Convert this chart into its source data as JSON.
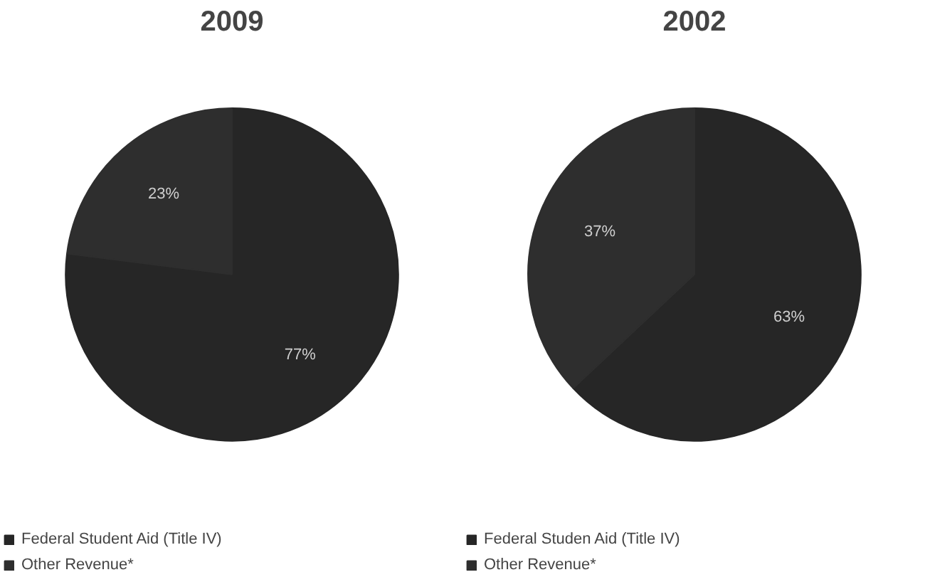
{
  "chart_data": [
    {
      "type": "pie",
      "title": "2009",
      "categories": [
        "Federal Student Aid (Title IV)",
        "Other Revenue*"
      ],
      "values": [
        77,
        23
      ],
      "value_labels": [
        "77%",
        "23%"
      ],
      "colors": [
        "#262626",
        "#2e2e2e"
      ],
      "legend": "bottom"
    },
    {
      "type": "pie",
      "title": "2002",
      "categories": [
        "Federal Studen Aid (Title IV)",
        "Other Revenue*"
      ],
      "values": [
        63,
        37
      ],
      "value_labels": [
        "63%",
        "37%"
      ],
      "colors": [
        "#262626",
        "#2e2e2e"
      ],
      "legend": "bottom"
    }
  ]
}
